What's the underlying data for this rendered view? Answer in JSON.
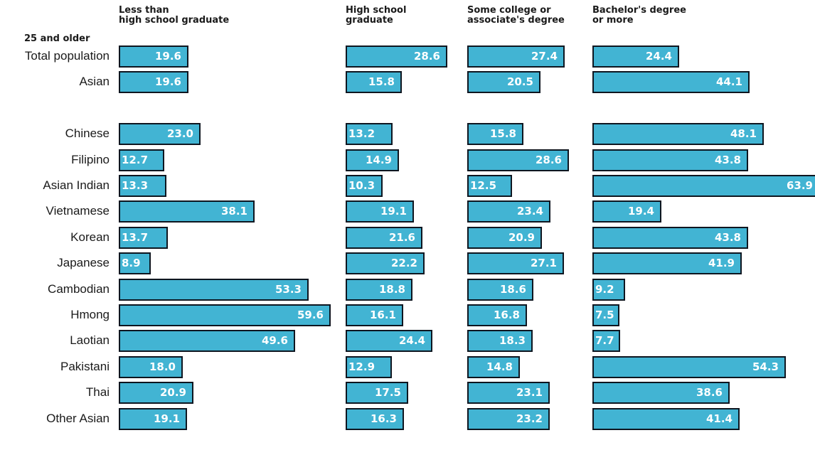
{
  "chart_data": {
    "type": "bar",
    "orientation": "horizontal",
    "row_header": "25 and older",
    "categories": [
      "Total population",
      "Asian",
      "",
      "Chinese",
      "Filipino",
      "Asian Indian",
      "Vietnamese",
      "Korean",
      "Japanese",
      "Cambodian",
      "Hmong",
      "Laotian",
      "Pakistani",
      "Thai",
      "Other Asian"
    ],
    "series": [
      {
        "name": "Less than\nhigh school graduate",
        "values": [
          19.6,
          19.6,
          null,
          23.0,
          12.7,
          13.3,
          38.1,
          13.7,
          8.9,
          53.3,
          59.6,
          49.6,
          18.0,
          20.9,
          19.1
        ],
        "labels": [
          "19.6",
          "19.6",
          "",
          "23.0",
          "12.7",
          "13.3",
          "38.1",
          "13.7",
          "8.9",
          "53.3",
          "59.6",
          "49.6",
          "18.0",
          "20.9",
          "19.1"
        ]
      },
      {
        "name": "High school\ngraduate",
        "values": [
          28.6,
          15.8,
          null,
          13.2,
          14.9,
          10.3,
          19.1,
          21.6,
          22.2,
          18.8,
          16.1,
          24.4,
          12.9,
          17.5,
          16.3
        ],
        "labels": [
          "28.6",
          "15.8",
          "",
          "13.2",
          "14.9",
          "10.3",
          "19.1",
          "21.6",
          "22.2",
          "18.8",
          "16.1",
          "24.4",
          "12.9",
          "17.5",
          "16.3"
        ]
      },
      {
        "name": "Some college or\nassociate's degree",
        "values": [
          27.4,
          20.5,
          null,
          15.8,
          28.6,
          12.5,
          23.4,
          20.9,
          27.1,
          18.6,
          16.8,
          18.3,
          14.8,
          23.1,
          23.2
        ],
        "labels": [
          "27.4",
          "20.5",
          "",
          "15.8",
          "28.6",
          "12.5",
          "23.4",
          "20.9",
          "27.1",
          "18.6",
          "16.8",
          "18.3",
          "14.8",
          "23.1",
          "23.2"
        ]
      },
      {
        "name": "Bachelor's degree\nor more",
        "values": [
          24.4,
          44.1,
          null,
          48.1,
          43.8,
          63.9,
          19.4,
          43.8,
          41.9,
          9.2,
          7.5,
          7.7,
          54.3,
          38.6,
          41.4
        ],
        "labels": [
          "24.4",
          "44.1",
          "",
          "48.1",
          "43.8",
          "63.9",
          "19.4",
          "43.8",
          "41.9",
          "9.2",
          "7.5",
          "7.7",
          "54.3",
          "38.6",
          "41.4"
        ]
      }
    ],
    "colors": {
      "bar_fill": "#42b4d3",
      "bar_border": "#0e1620",
      "value_text": "#ffffff",
      "label_text": "#1a1a1a"
    },
    "grid": false,
    "legend": "none"
  }
}
